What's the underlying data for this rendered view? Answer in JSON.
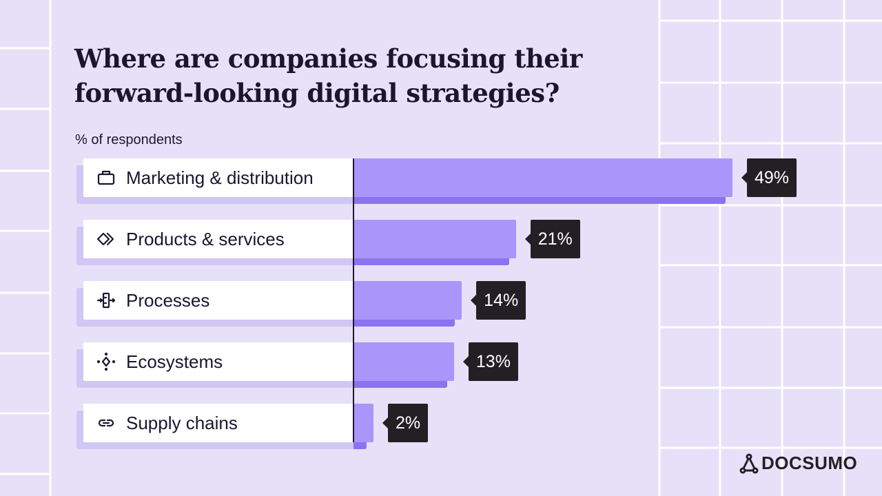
{
  "title": "Where are companies focusing their forward-looking digital strategies?",
  "subtitle": "% of respondents",
  "brand": "DOCSUMO",
  "colors": {
    "background": "#e6e1f8",
    "bar": "#a896fb",
    "bar_shadow": "#8a73f0",
    "label_bg": "#ffffff",
    "tooltip": "#222024"
  },
  "chart_data": {
    "type": "bar",
    "orientation": "horizontal",
    "ylabel": "% of respondents",
    "categories": [
      "Marketing & distribution",
      "Products & services",
      "Processes",
      "Ecosystems",
      "Supply chains"
    ],
    "icons": [
      "briefcase-icon",
      "diamonds-icon",
      "process-icon",
      "ecosystem-icon",
      "link-icon"
    ],
    "values": [
      49,
      21,
      14,
      13,
      2
    ],
    "data_labels": [
      "49%",
      "21%",
      "14%",
      "13%",
      "2%"
    ],
    "xlim": [
      0,
      49
    ]
  }
}
